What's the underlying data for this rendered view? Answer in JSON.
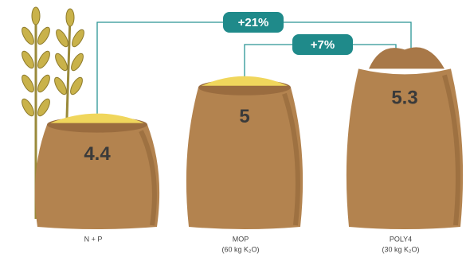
{
  "chart_data": {
    "type": "bar",
    "categories": [
      "N + P",
      "MOP",
      "POLY4"
    ],
    "category_notes": [
      null,
      "(60 kg K₂O)",
      "(30 kg K₂O)"
    ],
    "values": [
      4.4,
      5.0,
      5.3
    ],
    "annotations": [
      "+21%",
      "+7%"
    ],
    "color": "#b3834f"
  }
}
